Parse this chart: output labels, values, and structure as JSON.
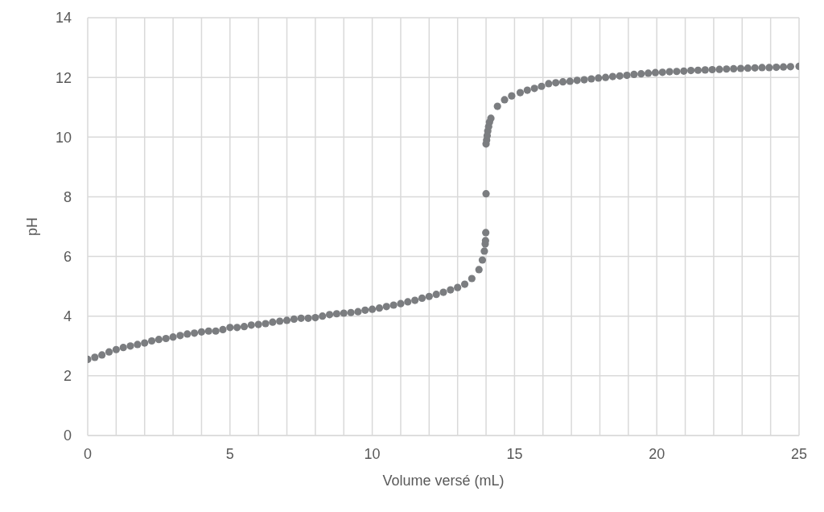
{
  "chart_data": {
    "type": "scatter",
    "xlabel": "Volume versé (mL)",
    "ylabel": "pH",
    "x": [
      0,
      0.25,
      0.5,
      0.75,
      1,
      1.25,
      1.5,
      1.75,
      2,
      2.25,
      2.5,
      2.75,
      3,
      3.25,
      3.5,
      3.75,
      4,
      4.25,
      4.5,
      4.75,
      5,
      5.25,
      5.5,
      5.75,
      6,
      6.25,
      6.5,
      6.75,
      7,
      7.25,
      7.5,
      7.75,
      8,
      8.25,
      8.5,
      8.75,
      9,
      9.25,
      9.5,
      9.75,
      10,
      10.25,
      10.5,
      10.75,
      11,
      11.25,
      11.5,
      11.75,
      12,
      12.25,
      12.5,
      12.75,
      13,
      13.25,
      13.5,
      13.75,
      13.87,
      13.94,
      13.97,
      13.98,
      13.99,
      14,
      14,
      14.02,
      14.04,
      14.06,
      14.09,
      14.12,
      14.17,
      14.4,
      14.65,
      14.9,
      15.2,
      15.45,
      15.7,
      15.95,
      16.2,
      16.45,
      16.7,
      16.95,
      17.2,
      17.45,
      17.7,
      17.95,
      18.2,
      18.45,
      18.7,
      18.95,
      19.2,
      19.45,
      19.7,
      19.95,
      20.2,
      20.45,
      20.7,
      20.95,
      21.2,
      21.45,
      21.7,
      21.95,
      22.2,
      22.45,
      22.7,
      22.95,
      23.2,
      23.45,
      23.7,
      23.95,
      24.2,
      24.45,
      24.7,
      25
    ],
    "series": [
      {
        "color": "#7b7d80",
        "values": [
          2.55,
          2.62,
          2.7,
          2.8,
          2.88,
          2.95,
          3.0,
          3.05,
          3.1,
          3.17,
          3.22,
          3.25,
          3.3,
          3.35,
          3.4,
          3.43,
          3.47,
          3.5,
          3.5,
          3.55,
          3.62,
          3.62,
          3.65,
          3.7,
          3.72,
          3.75,
          3.8,
          3.83,
          3.86,
          3.9,
          3.93,
          3.93,
          3.95,
          4.0,
          4.05,
          4.08,
          4.1,
          4.12,
          4.15,
          4.2,
          4.23,
          4.27,
          4.32,
          4.37,
          4.42,
          4.48,
          4.53,
          4.6,
          4.66,
          4.73,
          4.8,
          4.88,
          4.96,
          5.07,
          5.26,
          5.56,
          5.88,
          6.18,
          6.42,
          6.53,
          6.8,
          8.1,
          9.77,
          9.9,
          10.05,
          10.2,
          10.35,
          10.5,
          10.63,
          11.03,
          11.25,
          11.38,
          11.49,
          11.57,
          11.63,
          11.7,
          11.79,
          11.82,
          11.85,
          11.87,
          11.9,
          11.92,
          11.95,
          11.98,
          12.0,
          12.03,
          12.05,
          12.07,
          12.1,
          12.12,
          12.14,
          12.16,
          12.17,
          12.19,
          12.2,
          12.21,
          12.23,
          12.24,
          12.25,
          12.26,
          12.27,
          12.28,
          12.29,
          12.3,
          12.31,
          12.32,
          12.33,
          12.33,
          12.34,
          12.35,
          12.36,
          12.37
        ]
      }
    ],
    "xlim": [
      0,
      25
    ],
    "xticks": [
      0,
      {
        "value": 1,
        "label": null
      },
      {
        "value": 2,
        "label": null
      },
      {
        "value": 3,
        "label": null
      },
      {
        "value": 4,
        "label": null
      },
      5,
      {
        "value": 6,
        "label": null
      },
      {
        "value": 7,
        "label": null
      },
      {
        "value": 8,
        "label": null
      },
      {
        "value": 9,
        "label": null
      },
      10,
      {
        "value": 11,
        "label": null
      },
      {
        "value": 12,
        "label": null
      },
      {
        "value": 13,
        "label": null
      },
      {
        "value": 14,
        "label": null
      },
      15,
      {
        "value": 16,
        "label": null
      },
      {
        "value": 17,
        "label": null
      },
      {
        "value": 18,
        "label": null
      },
      {
        "value": 19,
        "label": null
      },
      20,
      {
        "value": 21,
        "label": null
      },
      {
        "value": 22,
        "label": null
      },
      {
        "value": 23,
        "label": null
      },
      {
        "value": 24,
        "label": null
      },
      25
    ],
    "ylim": [
      0,
      14
    ],
    "yticks": [
      0,
      2,
      4,
      6,
      8,
      10,
      12,
      14
    ],
    "grid": true,
    "marker": "circle",
    "legend": false
  }
}
